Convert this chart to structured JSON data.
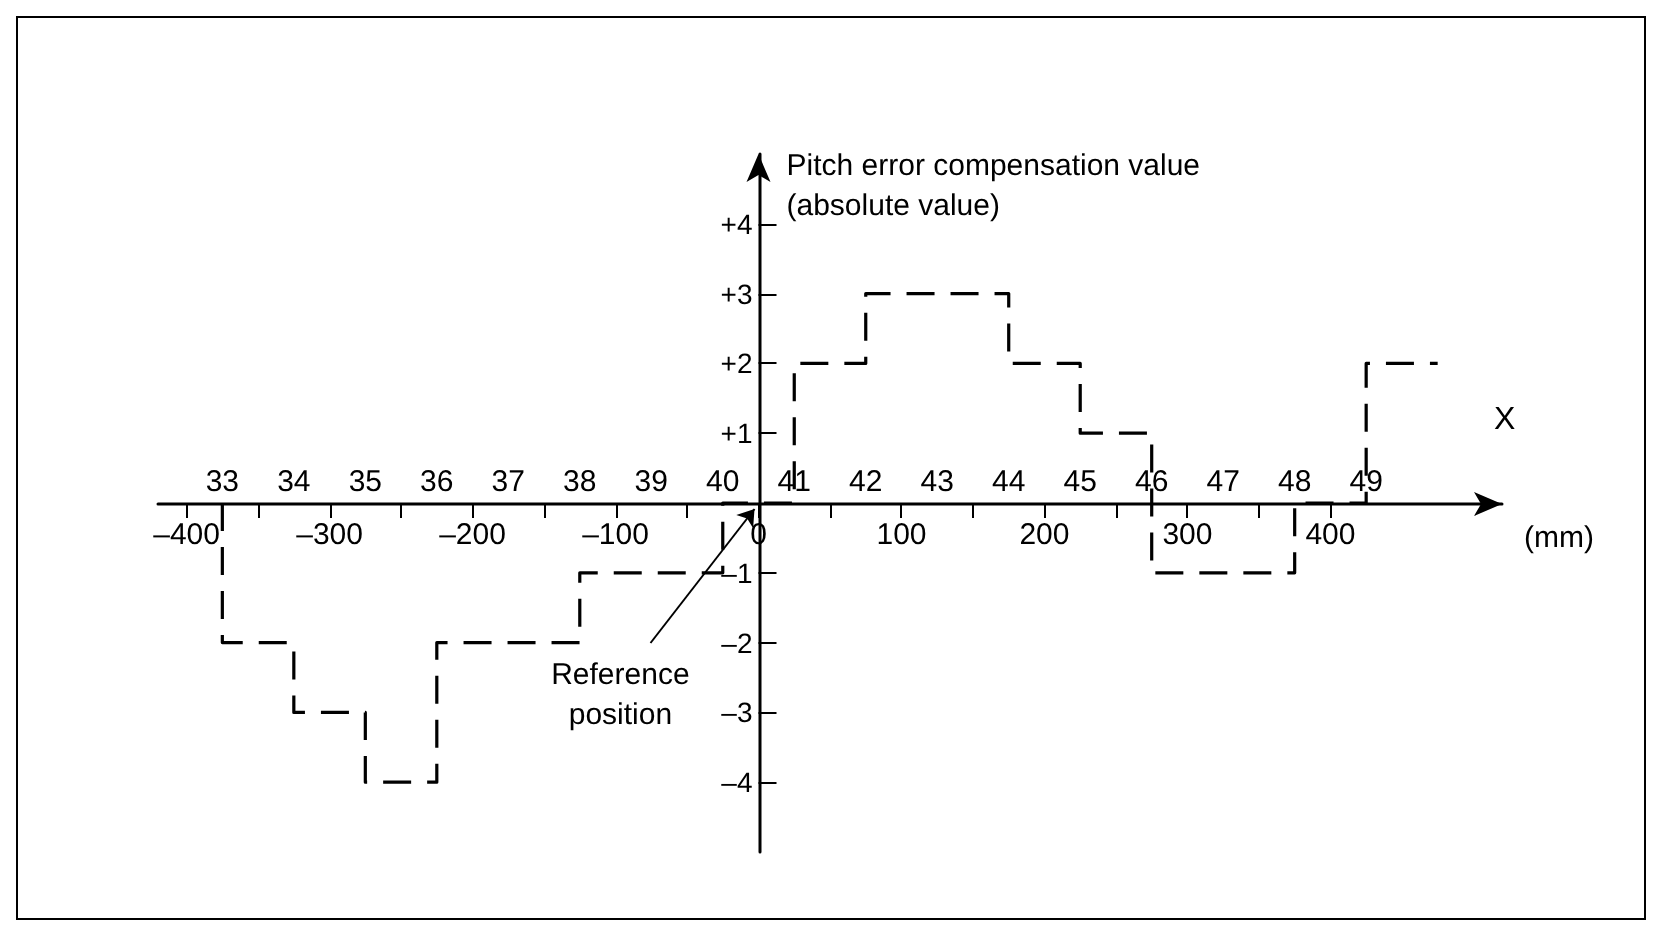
{
  "chart_data": {
    "type": "step",
    "ylabel": "Pitch error compensation value (absolute value)",
    "xlabel": "X",
    "annotations": [
      "(mm)",
      {
        "text": "Reference position",
        "x": 0,
        "y": 0
      }
    ],
    "x": [
      -375,
      -375,
      -325,
      -275,
      -225,
      -125,
      -25,
      25,
      75,
      175,
      225,
      275,
      375,
      425,
      475
    ],
    "values": [
      0,
      -2,
      -3,
      -4,
      -2,
      -1,
      0,
      2,
      3,
      2,
      1,
      -1,
      0,
      2,
      2
    ],
    "color": "#000000",
    "line_style": "dashed",
    "marker": "none",
    "xlim": [
      -420,
      520
    ],
    "xticks": [
      {
        "value": -400,
        "label": "–400"
      },
      {
        "value": -350,
        "label": null
      },
      {
        "value": -300,
        "label": "–300"
      },
      {
        "value": -250,
        "label": null
      },
      {
        "value": -200,
        "label": "–200"
      },
      {
        "value": -150,
        "label": null
      },
      {
        "value": -100,
        "label": "–100"
      },
      {
        "value": -50,
        "label": null
      },
      0,
      {
        "value": 50,
        "label": null
      },
      100,
      {
        "value": 150,
        "label": null
      },
      200,
      {
        "value": 250,
        "label": null
      },
      300,
      {
        "value": 350,
        "label": null
      },
      400
    ],
    "x2lim": [
      32.1,
      50.9
    ],
    "x2ticks": [
      33,
      34,
      35,
      36,
      37,
      38,
      39,
      40,
      41,
      42,
      43,
      44,
      45,
      46,
      47,
      48,
      49
    ],
    "ylim": [
      -5,
      5
    ],
    "yticks": [
      {
        "value": -4,
        "label": "–4"
      },
      {
        "value": -3,
        "label": "–3"
      },
      {
        "value": -2,
        "label": "–2"
      },
      {
        "value": -1,
        "label": "–1"
      },
      {
        "value": 1,
        "label": "+1"
      },
      {
        "value": 2,
        "label": "+2"
      },
      {
        "value": 3,
        "label": "+3"
      },
      {
        "value": 4,
        "label": "+4"
      }
    ]
  }
}
